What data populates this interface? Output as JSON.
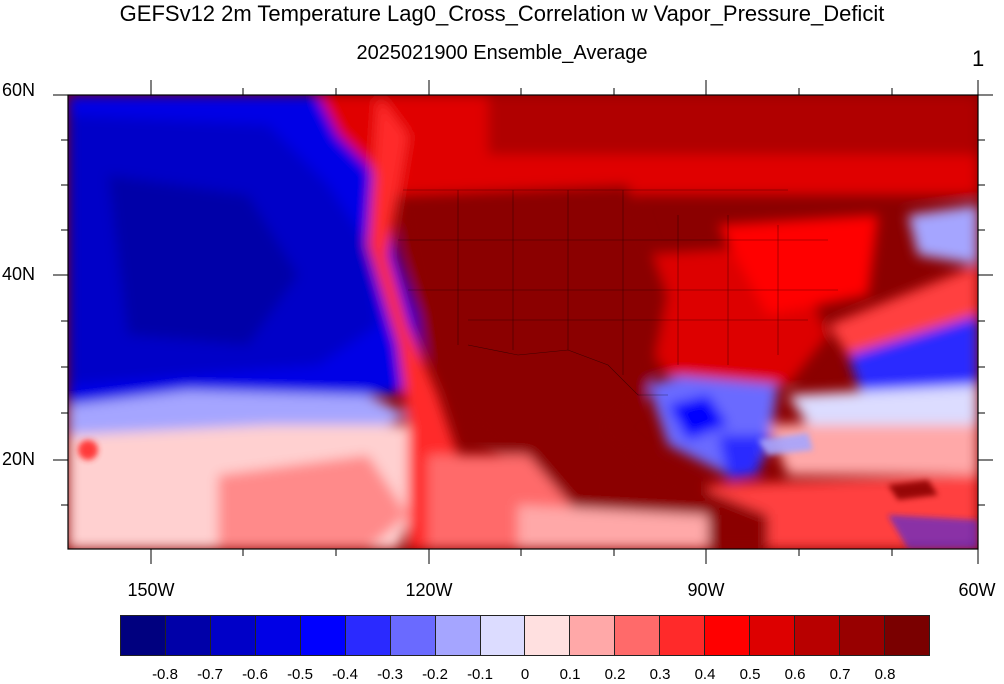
{
  "title": "GEFSv12 2m Temperature Lag0_Cross_Correlation w Vapor_Pressure_Deficit",
  "subtitle": "2025021900 Ensemble_Average",
  "panel_label": "1",
  "lat_labels": [
    "60N",
    "40N",
    "20N"
  ],
  "lon_labels": [
    "150W",
    "120W",
    "90W",
    "60W"
  ],
  "colorbar": {
    "colors": [
      "#00007f",
      "#0000a8",
      "#0000c8",
      "#0000e6",
      "#0000ff",
      "#2a2aff",
      "#6a6aff",
      "#a5a5ff",
      "#dcdcff",
      "#ffe0e0",
      "#ffa8a8",
      "#ff6a6a",
      "#ff2a2a",
      "#ff0000",
      "#dd0000",
      "#b80000",
      "#980000",
      "#7a0000"
    ],
    "labels": [
      "-0.8",
      "-0.7",
      "-0.6",
      "-0.5",
      "-0.4",
      "-0.3",
      "-0.2",
      "-0.1",
      "0",
      "0.1",
      "0.2",
      "0.3",
      "0.4",
      "0.5",
      "0.6",
      "0.7",
      "0.8"
    ]
  },
  "map": {
    "region": "North America and adjacent Pacific/Atlantic",
    "lon_range": [
      -160,
      -60
    ],
    "lat_range": [
      10,
      60
    ]
  }
}
